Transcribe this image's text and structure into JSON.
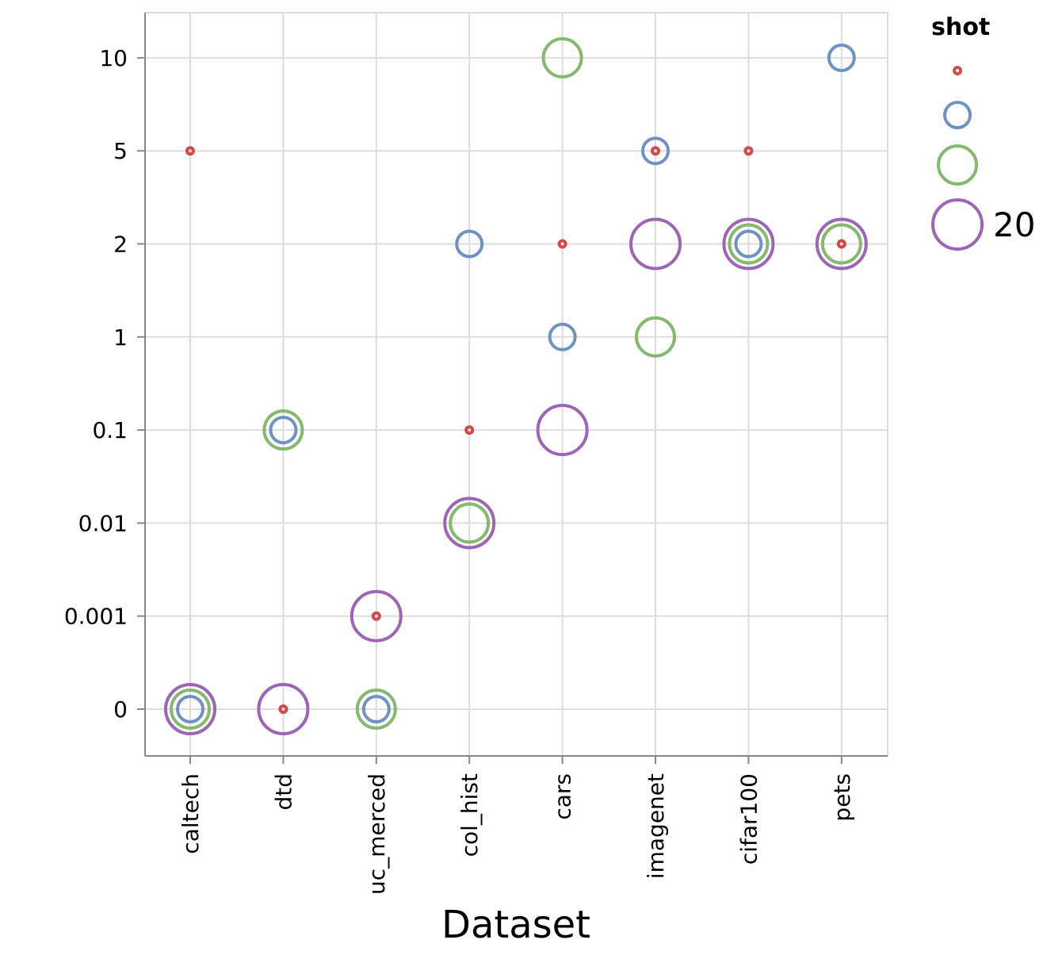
{
  "chart_data": {
    "type": "scatter",
    "title": "",
    "xlabel": "Dataset",
    "ylabel": "",
    "y_scale": "categorical",
    "grid": true,
    "categories": [
      "caltech",
      "dtd",
      "uc_merced",
      "col_hist",
      "cars",
      "imagenet",
      "cifar100",
      "pets"
    ],
    "y_categories": [
      "0",
      "0.001",
      "0.01",
      "0.1",
      "1",
      "2",
      "5",
      "10"
    ],
    "legend": {
      "title": "shot",
      "placement": "right",
      "entries": [
        {
          "label": "",
          "color": "#d04a4a",
          "size": "smallest"
        },
        {
          "label": "",
          "color": "#6f92c2",
          "size": "small"
        },
        {
          "label": "",
          "color": "#85b96d",
          "size": "medium"
        },
        {
          "label": "20",
          "color": "#9c65b5",
          "size": "largest"
        }
      ]
    },
    "series": [
      {
        "color": "#9c65b5",
        "points": [
          [
            "caltech",
            "0"
          ],
          [
            "dtd",
            "0"
          ],
          [
            "uc_merced",
            "0.001"
          ],
          [
            "col_hist",
            "0.01"
          ],
          [
            "cars",
            "0.1"
          ],
          [
            "imagenet",
            "2"
          ],
          [
            "cifar100",
            "2"
          ],
          [
            "pets",
            "2"
          ]
        ]
      },
      {
        "color": "#85b96d",
        "points": [
          [
            "caltech",
            "0"
          ],
          [
            "dtd",
            "0.1"
          ],
          [
            "uc_merced",
            "0"
          ],
          [
            "col_hist",
            "0.01"
          ],
          [
            "cars",
            "10"
          ],
          [
            "imagenet",
            "1"
          ],
          [
            "cifar100",
            "2"
          ],
          [
            "pets",
            "2"
          ]
        ]
      },
      {
        "color": "#6f92c2",
        "points": [
          [
            "caltech",
            "0"
          ],
          [
            "dtd",
            "0.1"
          ],
          [
            "uc_merced",
            "0"
          ],
          [
            "col_hist",
            "2"
          ],
          [
            "cars",
            "1"
          ],
          [
            "imagenet",
            "5"
          ],
          [
            "cifar100",
            "2"
          ],
          [
            "pets",
            "10"
          ]
        ]
      },
      {
        "color": "#d04a4a",
        "points": [
          [
            "caltech",
            "5"
          ],
          [
            "dtd",
            "0"
          ],
          [
            "uc_merced",
            "0.001"
          ],
          [
            "col_hist",
            "0.1"
          ],
          [
            "cars",
            "2"
          ],
          [
            "imagenet",
            "5"
          ],
          [
            "cifar100",
            "5"
          ],
          [
            "pets",
            "2"
          ]
        ]
      }
    ]
  }
}
